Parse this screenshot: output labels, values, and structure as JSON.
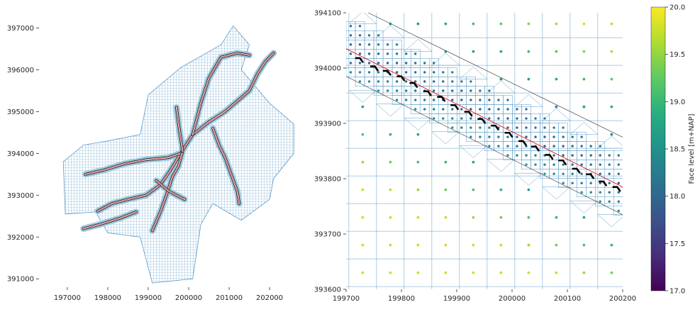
{
  "chart_data": [
    {
      "type": "map-mesh",
      "title": "",
      "xlabel": "",
      "ylabel": "",
      "xlim": [
        196300,
        202700
      ],
      "ylim": [
        390800,
        397500
      ],
      "xticks": [
        197000,
        198000,
        199000,
        200000,
        201000,
        202000
      ],
      "yticks": [
        391000,
        392000,
        393000,
        394000,
        395000,
        396000,
        397000
      ],
      "xtick_labels": [
        "197000",
        "198000",
        "199000",
        "200000",
        "201000",
        "202000"
      ],
      "ytick_labels": [
        "391000",
        "392000",
        "393000",
        "394000",
        "395000",
        "396000",
        "397000"
      ],
      "grid": false,
      "mesh_color": "#5b9bc8",
      "channel_color": "#2b2b2b",
      "centerline_color": "#d7191c",
      "domain_outline": [
        [
          196950,
          392550
        ],
        [
          196900,
          393800
        ],
        [
          197400,
          394200
        ],
        [
          198000,
          394300
        ],
        [
          198800,
          394450
        ],
        [
          199000,
          395400
        ],
        [
          199800,
          396050
        ],
        [
          200800,
          396600
        ],
        [
          201100,
          397050
        ],
        [
          201500,
          396600
        ],
        [
          201300,
          396000
        ],
        [
          202000,
          395200
        ],
        [
          202600,
          394700
        ],
        [
          202600,
          394000
        ],
        [
          202100,
          393400
        ],
        [
          202000,
          392900
        ],
        [
          201300,
          392400
        ],
        [
          200600,
          392800
        ],
        [
          200300,
          392300
        ],
        [
          200100,
          391000
        ],
        [
          199100,
          390900
        ],
        [
          198800,
          392000
        ],
        [
          198000,
          392100
        ],
        [
          197700,
          392600
        ]
      ],
      "channels": [
        [
          [
            197750,
            392620
          ],
          [
            198100,
            392800
          ],
          [
            198500,
            392900
          ],
          [
            198950,
            393000
          ],
          [
            199300,
            393250
          ],
          [
            199550,
            393600
          ],
          [
            199800,
            394000
          ],
          [
            200100,
            394450
          ],
          [
            200500,
            394750
          ],
          [
            200900,
            395000
          ],
          [
            201200,
            395250
          ],
          [
            201500,
            395500
          ],
          [
            201700,
            395900
          ],
          [
            201900,
            396200
          ],
          [
            202100,
            396400
          ]
        ],
        [
          [
            197450,
            393500
          ],
          [
            197900,
            393600
          ],
          [
            198400,
            393750
          ],
          [
            198950,
            393850
          ],
          [
            199500,
            393900
          ],
          [
            199800,
            394000
          ]
        ],
        [
          [
            199100,
            392150
          ],
          [
            199300,
            392600
          ],
          [
            199450,
            393000
          ],
          [
            199600,
            393450
          ],
          [
            199750,
            393700
          ],
          [
            199850,
            394050
          ]
        ],
        [
          [
            200600,
            394600
          ],
          [
            200750,
            394200
          ],
          [
            200900,
            393900
          ],
          [
            201050,
            393500
          ],
          [
            201200,
            393100
          ],
          [
            201250,
            392800
          ]
        ],
        [
          [
            199850,
            394050
          ],
          [
            199750,
            394700
          ],
          [
            199700,
            395100
          ]
        ],
        [
          [
            200100,
            394450
          ],
          [
            200300,
            395200
          ],
          [
            200500,
            395800
          ],
          [
            200800,
            396300
          ],
          [
            201200,
            396400
          ],
          [
            201500,
            396350
          ]
        ],
        [
          [
            197400,
            392200
          ],
          [
            197800,
            392300
          ],
          [
            198300,
            392450
          ],
          [
            198700,
            392600
          ]
        ],
        [
          [
            199200,
            393350
          ],
          [
            199500,
            393100
          ],
          [
            199900,
            392900
          ]
        ]
      ]
    },
    {
      "type": "scatter",
      "title": "",
      "xlabel": "",
      "ylabel": "",
      "xlim": [
        199700,
        200200
      ],
      "ylim": [
        393600,
        394100
      ],
      "xticks": [
        199700,
        199800,
        199900,
        200000,
        200100,
        200200
      ],
      "yticks": [
        393600,
        393700,
        393800,
        393900,
        394000,
        394100
      ],
      "xtick_labels": [
        "199700",
        "199800",
        "199900",
        "200000",
        "200100",
        "200200"
      ],
      "ytick_labels": [
        "393600",
        "393700",
        "393800",
        "393900",
        "394000",
        "394100"
      ],
      "grid": false,
      "colormap": "viridis",
      "mesh_color": "#5b9bc8",
      "centerline": [
        [
          199700,
          394035
        ],
        [
          200200,
          393785
        ]
      ],
      "bank_lines": [
        [
          [
            199740,
            394100
          ],
          [
            200200,
            393875
          ]
        ],
        [
          [
            199700,
            393985
          ],
          [
            200200,
            393735
          ]
        ]
      ],
      "coarse_x_step": 50,
      "coarse_y_step": 50,
      "fine_step": 16.7,
      "weir_segments": [
        [
          199725,
          394015
        ],
        [
          199752,
          394000
        ],
        [
          199775,
          393992
        ],
        [
          199800,
          393982
        ],
        [
          199823,
          393970
        ],
        [
          199848,
          393955
        ],
        [
          199873,
          393945
        ],
        [
          199897,
          393930
        ],
        [
          199922,
          393918
        ],
        [
          199946,
          393905
        ],
        [
          199970,
          393893
        ],
        [
          199995,
          393880
        ],
        [
          200020,
          393865
        ],
        [
          200043,
          393855
        ],
        [
          200068,
          393840
        ],
        [
          200092,
          393830
        ],
        [
          200117,
          393815
        ],
        [
          200142,
          393805
        ],
        [
          200165,
          393792
        ],
        [
          200190,
          393782
        ]
      ]
    },
    {
      "type": "colorbar",
      "label": "Face level [m+NAP]",
      "vmin": 17.0,
      "vmax": 20.0,
      "ticks": [
        17.0,
        17.5,
        18.0,
        18.5,
        19.0,
        19.5,
        20.0
      ],
      "tick_labels": [
        "17.0",
        "17.5",
        "18.0",
        "18.5",
        "19.0",
        "19.5",
        "20.0"
      ]
    }
  ]
}
